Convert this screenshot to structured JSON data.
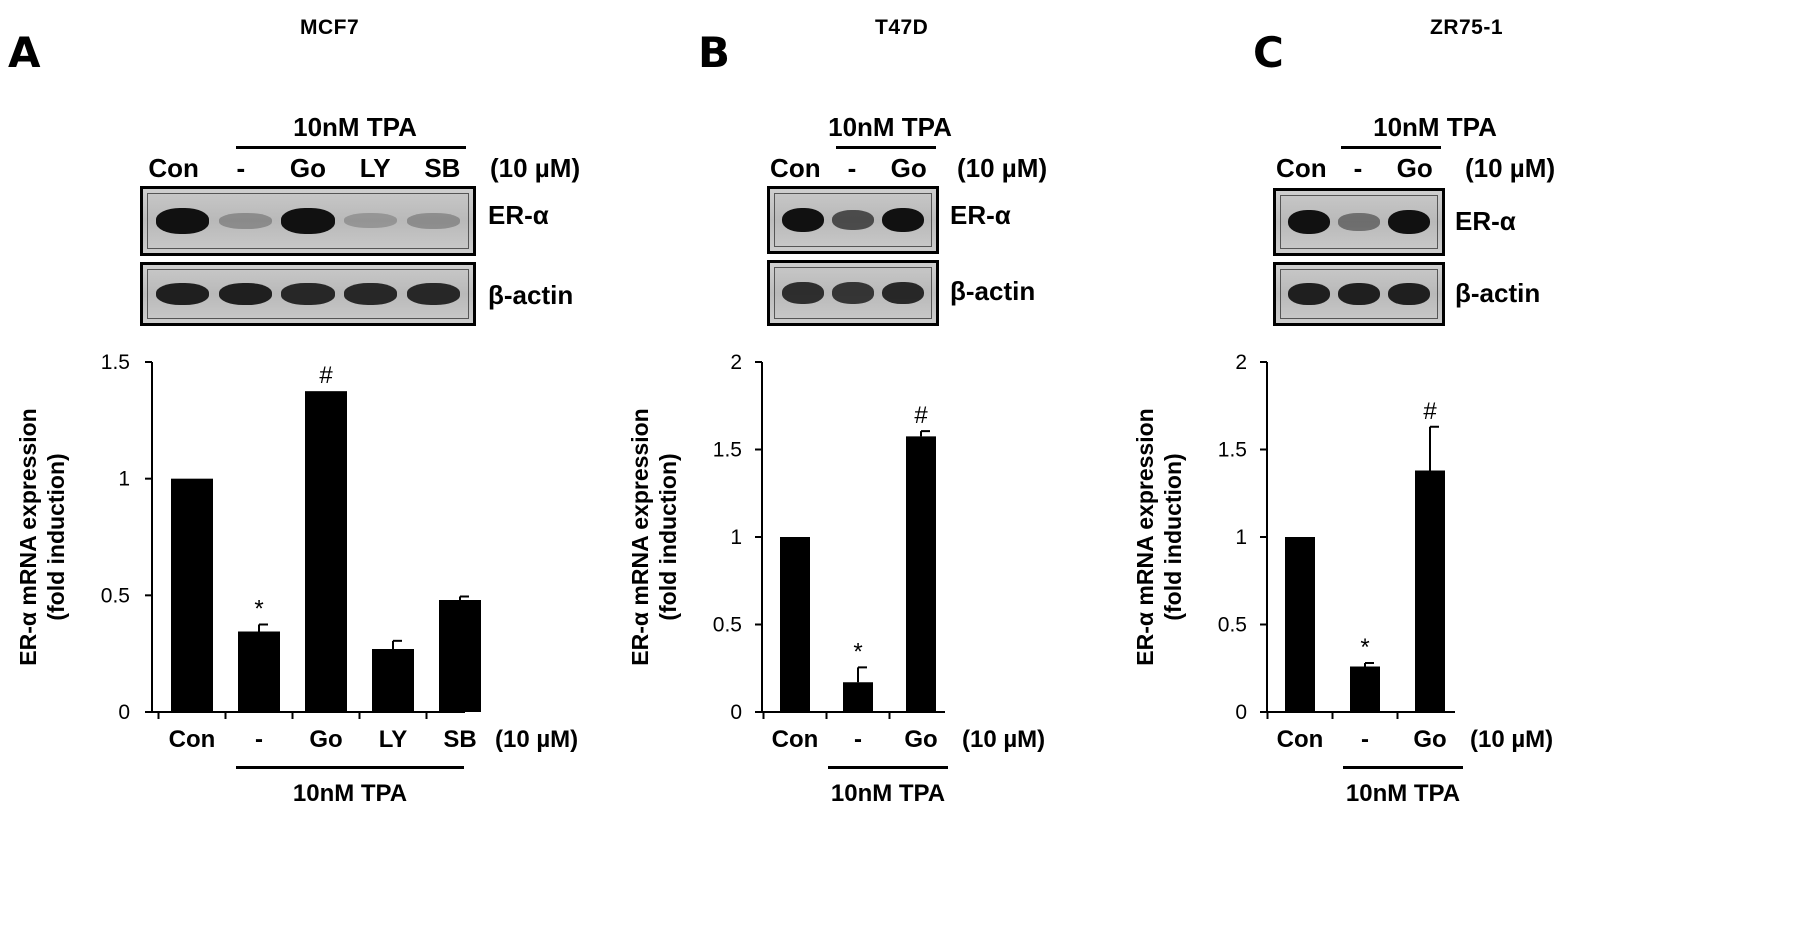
{
  "common": {
    "treatment_label": "10nM TPA",
    "dose_label": "(10 µM)",
    "er_label": "ER-α",
    "actin_label": "β-actin",
    "ylabel_line1": "ER-α mRNA expression",
    "ylabel_line2": "(fold induction)"
  },
  "panels": [
    {
      "letter": "A",
      "cell_line": "MCF7",
      "lanes": [
        "Con",
        "-",
        "Go",
        "LY",
        "SB"
      ],
      "blot_er_intensity": [
        1.0,
        0.15,
        1.0,
        0.08,
        0.14
      ],
      "blot_actin_intensity": [
        0.9,
        0.9,
        0.85,
        0.85,
        0.85
      ]
    },
    {
      "letter": "B",
      "cell_line": "T47D",
      "lanes": [
        "Con",
        "-",
        "Go"
      ],
      "blot_er_intensity": [
        1.0,
        0.6,
        1.0
      ],
      "blot_actin_intensity": [
        0.8,
        0.75,
        0.85
      ]
    },
    {
      "letter": "C",
      "cell_line": "ZR75-1",
      "lanes": [
        "Con",
        "-",
        "Go"
      ],
      "blot_er_intensity": [
        1.0,
        0.35,
        1.0
      ],
      "blot_actin_intensity": [
        0.9,
        0.9,
        0.9
      ]
    }
  ],
  "chart_data": [
    {
      "type": "bar",
      "panel": "A",
      "categories": [
        "Con",
        "-",
        "Go",
        "LY",
        "SB"
      ],
      "values": [
        1.0,
        0.345,
        1.375,
        0.27,
        0.48
      ],
      "errors": [
        0,
        0.03,
        0,
        0.035,
        0.015
      ],
      "annotations": [
        "",
        "*",
        "#",
        "",
        ""
      ],
      "ylim": [
        0,
        1.5
      ],
      "yticks": [
        0,
        0.5,
        1,
        1.5
      ],
      "ytick_labels": [
        "0",
        "0.5",
        "1",
        "1.5"
      ],
      "ylabel": "ER-α mRNA expression (fold induction)"
    },
    {
      "type": "bar",
      "panel": "B",
      "categories": [
        "Con",
        "-",
        "Go"
      ],
      "values": [
        1.0,
        0.17,
        1.575
      ],
      "errors": [
        0,
        0.085,
        0.03
      ],
      "annotations": [
        "",
        "*",
        "#"
      ],
      "ylim": [
        0,
        2
      ],
      "yticks": [
        0,
        0.5,
        1,
        1.5,
        2
      ],
      "ytick_labels": [
        "0",
        "0.5",
        "1",
        "1.5",
        "2"
      ],
      "ylabel": "ER-α mRNA expression (fold induction)"
    },
    {
      "type": "bar",
      "panel": "C",
      "categories": [
        "Con",
        "-",
        "Go"
      ],
      "values": [
        1.0,
        0.26,
        1.38
      ],
      "errors": [
        0,
        0.02,
        0.25
      ],
      "annotations": [
        "",
        "*",
        "#"
      ],
      "ylim": [
        0,
        2
      ],
      "yticks": [
        0,
        0.5,
        1,
        1.5,
        2
      ],
      "ytick_labels": [
        "0",
        "0.5",
        "1",
        "1.5",
        "2"
      ],
      "ylabel": "ER-α mRNA expression (fold induction)"
    }
  ]
}
